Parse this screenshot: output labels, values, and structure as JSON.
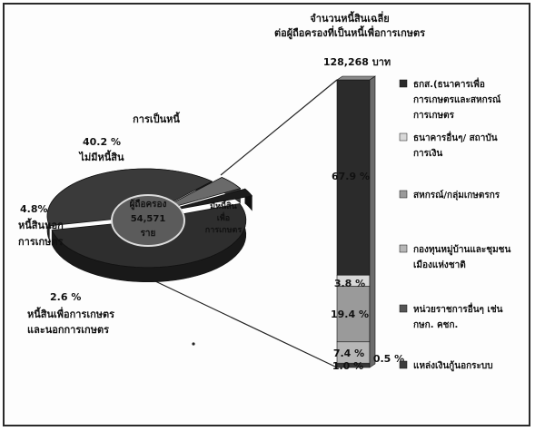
{
  "chart_data": [
    {
      "type": "pie",
      "title": "การเป็นหนี้",
      "center_label": [
        "ผู้ถือครอง",
        "54,571",
        "ราย"
      ],
      "slices": [
        {
          "label": "ไม่มีหนี้สิน",
          "percent_label": "40.2 %",
          "value": 40.2,
          "color": "#3a3a3a"
        },
        {
          "label_lines": [
            "หนี้สินนอก",
            "การเกษตร"
          ],
          "percent_label": "4.8%",
          "value": 4.8,
          "color": "#6a6a6a"
        },
        {
          "label_lines": [
            "หนี้สินเพื่อการเกษตร",
            "และนอกการเกษตร"
          ],
          "percent_label": "2.6 %",
          "value": 2.6,
          "color": "#1c1c1c"
        },
        {
          "label_lines": [
            "มีหนี้สิน",
            "เพื่อ",
            "การเกษตร"
          ],
          "value": 52.4,
          "color": "#2e2e2e"
        }
      ]
    },
    {
      "type": "bar",
      "stacked": true,
      "title_lines": [
        "จำนวนหนี้สินเฉลี่ย",
        "ต่อผู้ถือครองที่เป็นหนี้เพื่อการเกษตร"
      ],
      "total_label": "128,268 บาท",
      "unit": "%",
      "series": [
        {
          "name": "ธกส.(ธนาคารเพื่อการเกษตรและสหกรณ์การเกษตร",
          "value": 67.9,
          "value_label": "67.9 %",
          "color": "#2b2b2b"
        },
        {
          "name": "ธนาคารอื่นๆ/ สถาบันการเงิน",
          "value": 3.8,
          "value_label": "3.8 %",
          "color": "#d8d8d8"
        },
        {
          "name": "สหกรณ์/กลุ่มเกษตรกร",
          "value": 19.4,
          "value_label": "19.4 %",
          "color": "#9a9a9a"
        },
        {
          "name": "กองทุนหมู่บ้านและชุมชนเมืองแห่งชาติ",
          "value": 7.4,
          "value_label": "7.4 %",
          "color": "#b6b6b6"
        },
        {
          "name": "หน่วยราชการอื่นๆ เช่น กษก. คชก.",
          "value": 0.5,
          "value_label": "0.5 %",
          "color": "#555555"
        },
        {
          "name": "แหล่งเงินกู้นอกระบบ",
          "value": 1.0,
          "value_label": "1.0 %",
          "color": "#3c3c3c"
        }
      ],
      "legend_position": "right",
      "legend_lines": [
        [
          "ธกส.(ธนาคารเพื่อ",
          "การเกษตรและสหกรณ์",
          "การเกษตร"
        ],
        [
          "ธนาคารอื่นๆ/ สถาบัน",
          "การเงิน"
        ],
        [
          "สหกรณ์/กลุ่มเกษตรกร"
        ],
        [
          "กองทุนหมู่บ้านและชุมชน",
          "เมืองแห่งชาติ"
        ],
        [
          "หน่วยราชการอื่นๆ เช่น",
          "กษก. คชก."
        ],
        [
          "แหล่งเงินกู้นอกระบบ"
        ]
      ]
    }
  ]
}
